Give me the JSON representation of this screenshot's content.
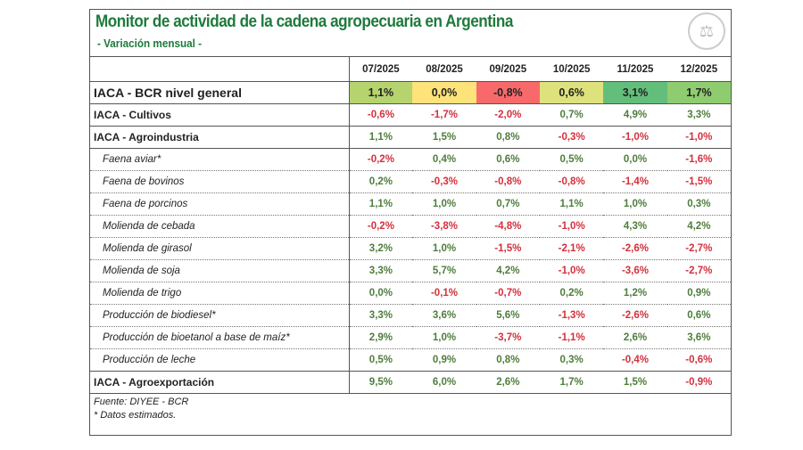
{
  "title": "Monitor de actividad de la cadena agropecuaria en Argentina",
  "subtitle": "- Variación mensual -",
  "columns": [
    "07/2025",
    "08/2025",
    "09/2025",
    "10/2025",
    "11/2025",
    "12/2025"
  ],
  "colors": {
    "positive": "#4e7d3c",
    "negative": "#d3303c",
    "headline_bg": [
      "#b5d46e",
      "#fde37a",
      "#f8696b",
      "#dee27c",
      "#63be7b",
      "#8fcc70"
    ]
  },
  "rows": [
    {
      "label": "IACA - BCR nivel general",
      "type": "headline",
      "values": [
        "1,1%",
        "0,0%",
        "-0,8%",
        "0,6%",
        "3,1%",
        "1,7%"
      ]
    },
    {
      "label": "IACA - Cultivos",
      "type": "main",
      "values": [
        "-0,6%",
        "-1,7%",
        "-2,0%",
        "0,7%",
        "4,9%",
        "3,3%"
      ]
    },
    {
      "label": "IACA - Agroindustria",
      "type": "main",
      "values": [
        "1,1%",
        "1,5%",
        "0,8%",
        "-0,3%",
        "-1,0%",
        "-1,0%"
      ]
    },
    {
      "label": "Faena aviar*",
      "type": "sub",
      "values": [
        "-0,2%",
        "0,4%",
        "0,6%",
        "0,5%",
        "0,0%",
        "-1,6%"
      ]
    },
    {
      "label": "Faena de bovinos",
      "type": "sub",
      "values": [
        "0,2%",
        "-0,3%",
        "-0,8%",
        "-0,8%",
        "-1,4%",
        "-1,5%"
      ]
    },
    {
      "label": "Faena de porcinos",
      "type": "sub",
      "values": [
        "1,1%",
        "1,0%",
        "0,7%",
        "1,1%",
        "1,0%",
        "0,3%"
      ]
    },
    {
      "label": "Molienda de cebada",
      "type": "sub",
      "values": [
        "-0,2%",
        "-3,8%",
        "-4,8%",
        "-1,0%",
        "4,3%",
        "4,2%"
      ]
    },
    {
      "label": "Molienda de girasol",
      "type": "sub",
      "values": [
        "3,2%",
        "1,0%",
        "-1,5%",
        "-2,1%",
        "-2,6%",
        "-2,7%"
      ]
    },
    {
      "label": "Molienda de soja",
      "type": "sub",
      "values": [
        "3,3%",
        "5,7%",
        "4,2%",
        "-1,0%",
        "-3,6%",
        "-2,7%"
      ]
    },
    {
      "label": "Molienda de trigo",
      "type": "sub",
      "values": [
        "0,0%",
        "-0,1%",
        "-0,7%",
        "0,2%",
        "1,2%",
        "0,9%"
      ]
    },
    {
      "label": "Producción de biodiesel*",
      "type": "sub",
      "values": [
        "3,3%",
        "3,6%",
        "5,6%",
        "-1,3%",
        "-2,6%",
        "0,6%"
      ]
    },
    {
      "label": "Producción de bioetanol a base de maíz*",
      "type": "sub",
      "values": [
        "2,9%",
        "1,0%",
        "-3,7%",
        "-1,1%",
        "2,6%",
        "3,6%"
      ]
    },
    {
      "label": "Producción de leche",
      "type": "sub",
      "values": [
        "0,5%",
        "0,9%",
        "0,8%",
        "0,3%",
        "-0,4%",
        "-0,6%"
      ]
    },
    {
      "label": "IACA - Agroexportación",
      "type": "main",
      "values": [
        "9,5%",
        "6,0%",
        "2,6%",
        "1,7%",
        "1,5%",
        "-0,9%"
      ]
    }
  ],
  "footnotes": [
    "Fuente: DIYEE - BCR",
    "* Datos estimados."
  ],
  "logo_icon": "bcr-seal-logo"
}
